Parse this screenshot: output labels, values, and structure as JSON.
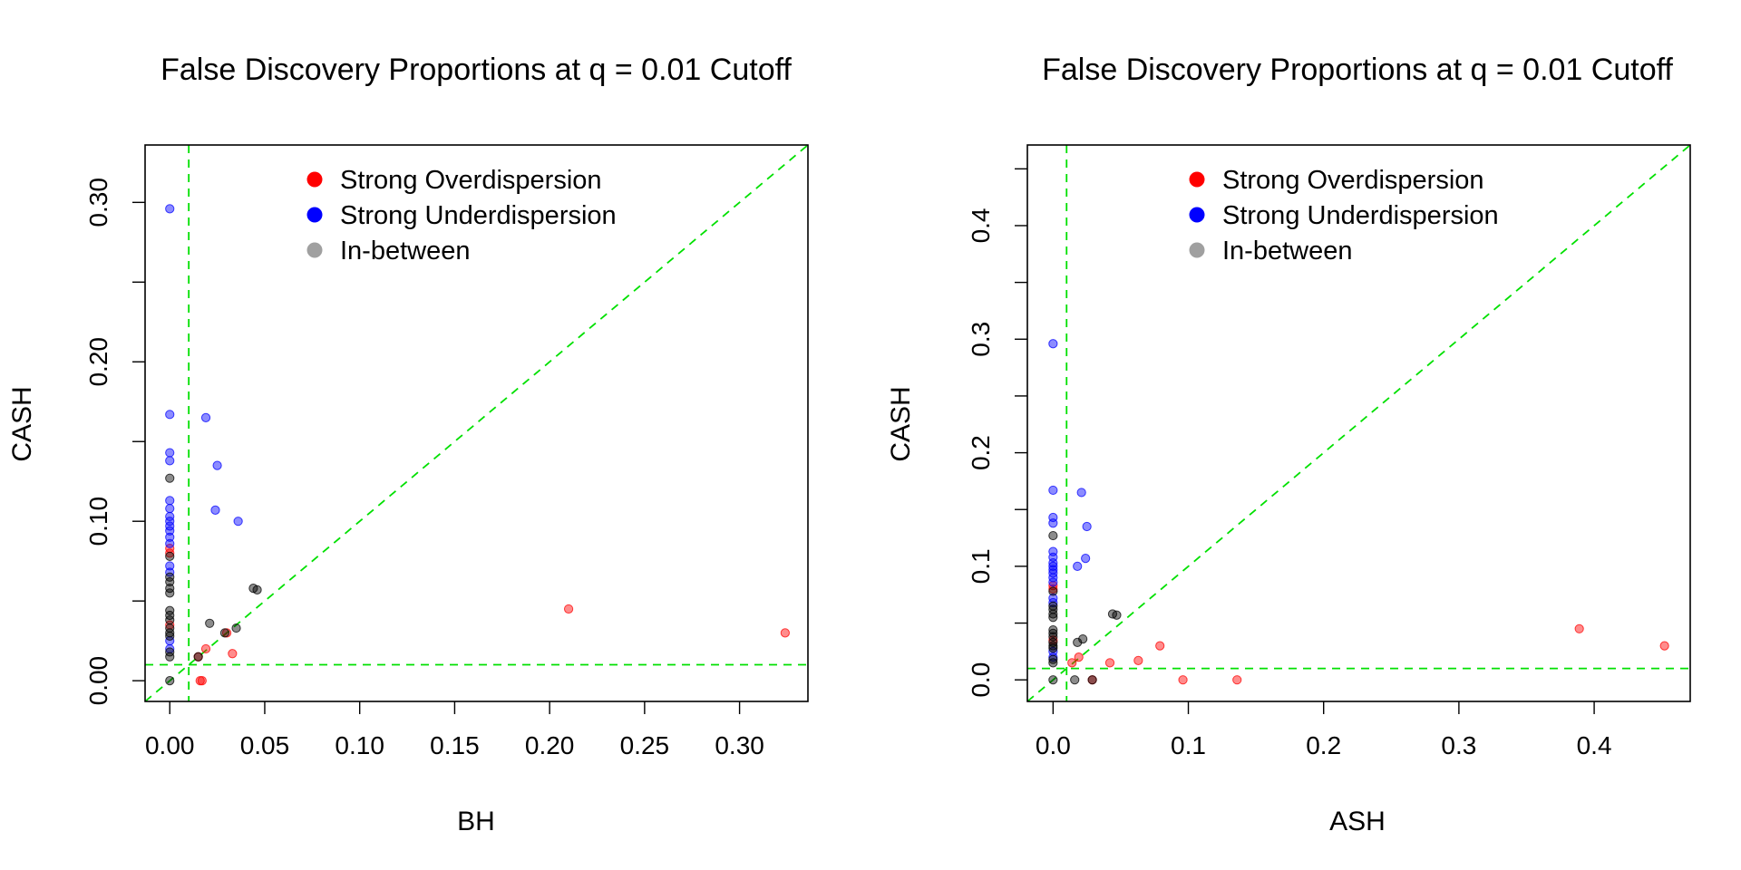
{
  "colors": {
    "strong_overdispersion": "#FF0000",
    "strong_underdispersion": "#0000FF",
    "in_between": "#000000",
    "legend_in_between": "#A0A0A0",
    "reference_lines": "#00E000"
  },
  "legend": {
    "items": [
      {
        "label": "Strong Overdispersion",
        "color": "#FF0000"
      },
      {
        "label": "Strong Underdispersion",
        "color": "#0000FF"
      },
      {
        "label": "In-between",
        "color": "#A0A0A0"
      }
    ]
  },
  "chart_data": [
    {
      "type": "scatter",
      "title": "False Discovery Proportions at q = 0.01 Cutoff",
      "xlabel": "BH",
      "ylabel": "CASH",
      "xlim": [
        -0.013,
        0.336
      ],
      "ylim": [
        -0.013,
        0.336
      ],
      "xticks": [
        0.0,
        0.05,
        0.1,
        0.15,
        0.2,
        0.25,
        0.3
      ],
      "xtick_labels": [
        "0.00",
        "0.05",
        "0.10",
        "0.15",
        "0.20",
        "0.25",
        "0.30"
      ],
      "yticks": [
        0.0,
        0.1,
        0.2,
        0.3
      ],
      "ytick_labels": [
        "0.00",
        "0.10",
        "0.20",
        "0.30"
      ],
      "cutoff": 0.01,
      "legend_position": "top",
      "series": [
        {
          "name": "Strong Overdispersion",
          "points": [
            [
              0,
              0.08
            ],
            [
              0,
              0.083
            ],
            [
              0,
              0.035
            ],
            [
              0.015,
              0.015
            ],
            [
              0.016,
              0
            ],
            [
              0.017,
              0
            ],
            [
              0.019,
              0.02
            ],
            [
              0.03,
              0.03
            ],
            [
              0.033,
              0.017
            ],
            [
              0.21,
              0.045
            ],
            [
              0.324,
              0.03
            ]
          ]
        },
        {
          "name": "Strong Underdispersion",
          "points": [
            [
              0,
              0.296
            ],
            [
              0,
              0.167
            ],
            [
              0,
              0.143
            ],
            [
              0,
              0.138
            ],
            [
              0,
              0.113
            ],
            [
              0,
              0.108
            ],
            [
              0,
              0.103
            ],
            [
              0,
              0.1
            ],
            [
              0,
              0.097
            ],
            [
              0,
              0.094
            ],
            [
              0,
              0.09
            ],
            [
              0,
              0.086
            ],
            [
              0,
              0.072
            ],
            [
              0,
              0.068
            ],
            [
              0,
              0.025
            ],
            [
              0,
              0.02
            ],
            [
              0.019,
              0.165
            ],
            [
              0.025,
              0.135
            ],
            [
              0.024,
              0.107
            ],
            [
              0.036,
              0.1
            ]
          ]
        },
        {
          "name": "In-between",
          "points": [
            [
              0,
              0.127
            ],
            [
              0,
              0.078
            ],
            [
              0,
              0.065
            ],
            [
              0,
              0.062
            ],
            [
              0,
              0.058
            ],
            [
              0,
              0.055
            ],
            [
              0,
              0.044
            ],
            [
              0,
              0.041
            ],
            [
              0,
              0.038
            ],
            [
              0,
              0.033
            ],
            [
              0,
              0.03
            ],
            [
              0,
              0.028
            ],
            [
              0,
              0.018
            ],
            [
              0,
              0.015
            ],
            [
              0,
              0
            ],
            [
              0.015,
              0.015
            ],
            [
              0.021,
              0.036
            ],
            [
              0.029,
              0.03
            ],
            [
              0.035,
              0.033
            ],
            [
              0.044,
              0.058
            ],
            [
              0.046,
              0.057
            ]
          ]
        }
      ]
    },
    {
      "type": "scatter",
      "title": "False Discovery Proportions at q = 0.01 Cutoff",
      "xlabel": "ASH",
      "ylabel": "CASH",
      "xlim": [
        -0.019,
        0.471
      ],
      "ylim": [
        -0.019,
        0.471
      ],
      "xticks": [
        0.0,
        0.1,
        0.2,
        0.3,
        0.4
      ],
      "xtick_labels": [
        "0.0",
        "0.1",
        "0.2",
        "0.3",
        "0.4"
      ],
      "yticks": [
        0.0,
        0.1,
        0.2,
        0.3,
        0.4
      ],
      "ytick_labels": [
        "0.0",
        "0.1",
        "0.2",
        "0.3",
        "0.4"
      ],
      "cutoff": 0.01,
      "legend_position": "top",
      "series": [
        {
          "name": "Strong Overdispersion",
          "points": [
            [
              0,
              0.08
            ],
            [
              0,
              0.083
            ],
            [
              0,
              0.035
            ],
            [
              0.014,
              0.015
            ],
            [
              0.019,
              0.02
            ],
            [
              0.042,
              0.015
            ],
            [
              0.063,
              0.017
            ],
            [
              0.079,
              0.03
            ],
            [
              0.096,
              0
            ],
            [
              0.136,
              0
            ],
            [
              0.389,
              0.045
            ],
            [
              0.452,
              0.03
            ],
            [
              0.029,
              0
            ]
          ]
        },
        {
          "name": "Strong Underdispersion",
          "points": [
            [
              0,
              0.296
            ],
            [
              0,
              0.167
            ],
            [
              0,
              0.143
            ],
            [
              0,
              0.138
            ],
            [
              0,
              0.113
            ],
            [
              0,
              0.108
            ],
            [
              0,
              0.103
            ],
            [
              0,
              0.1
            ],
            [
              0,
              0.097
            ],
            [
              0,
              0.094
            ],
            [
              0,
              0.09
            ],
            [
              0,
              0.086
            ],
            [
              0,
              0.072
            ],
            [
              0,
              0.068
            ],
            [
              0,
              0.025
            ],
            [
              0,
              0.02
            ],
            [
              0.021,
              0.165
            ],
            [
              0.025,
              0.135
            ],
            [
              0.024,
              0.107
            ],
            [
              0.018,
              0.1
            ]
          ]
        },
        {
          "name": "In-between",
          "points": [
            [
              0,
              0.127
            ],
            [
              0,
              0.078
            ],
            [
              0,
              0.065
            ],
            [
              0,
              0.062
            ],
            [
              0,
              0.058
            ],
            [
              0,
              0.055
            ],
            [
              0,
              0.044
            ],
            [
              0,
              0.041
            ],
            [
              0,
              0.038
            ],
            [
              0,
              0.033
            ],
            [
              0,
              0.03
            ],
            [
              0,
              0.028
            ],
            [
              0,
              0.018
            ],
            [
              0,
              0.015
            ],
            [
              0,
              0
            ],
            [
              0.016,
              0
            ],
            [
              0.018,
              0.033
            ],
            [
              0.022,
              0.036
            ],
            [
              0.029,
              0
            ],
            [
              0.044,
              0.058
            ],
            [
              0.047,
              0.057
            ]
          ]
        }
      ]
    }
  ]
}
